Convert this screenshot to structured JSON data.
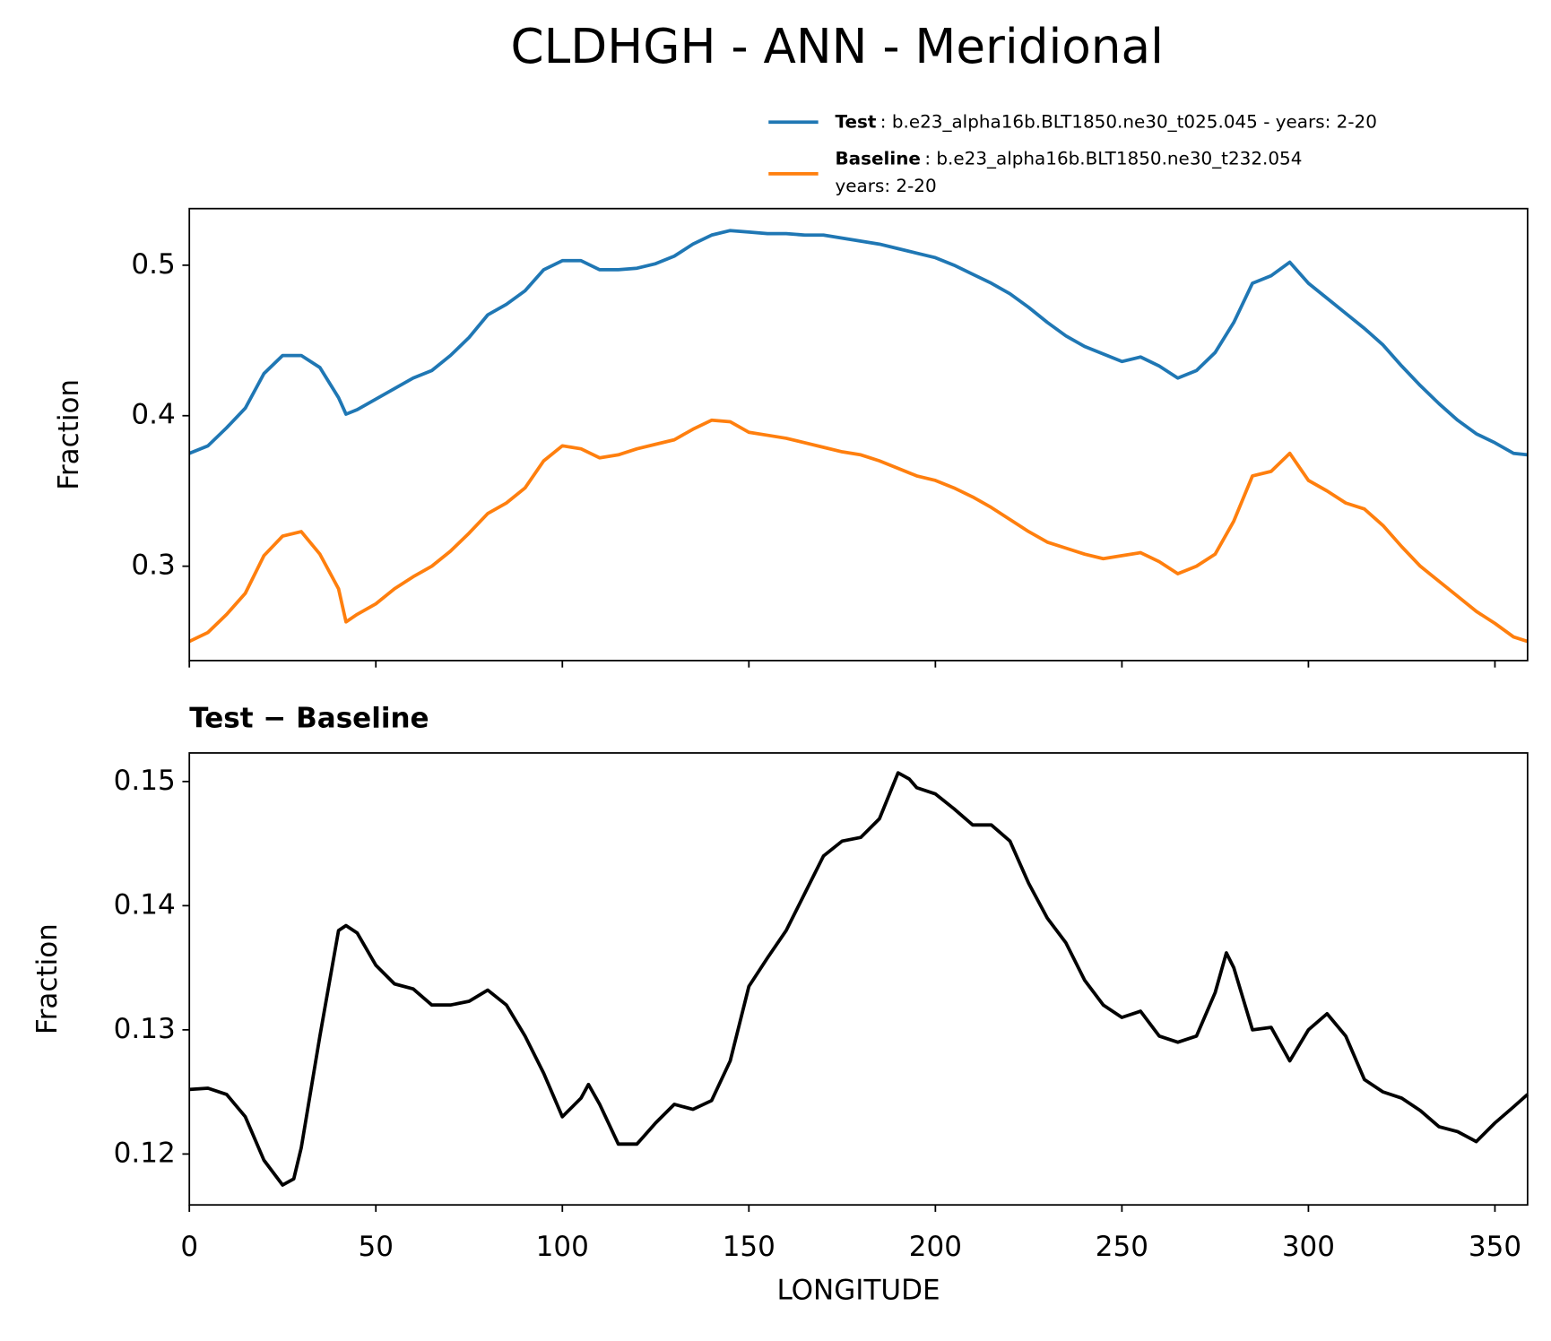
{
  "chart_data": [
    {
      "type": "line",
      "title": "CLDHGH - ANN - Meridional",
      "y_label": "Fraction",
      "xlim": [
        0,
        358.75
      ],
      "ylim": [
        0.2373,
        0.5376
      ],
      "xticks": [
        0,
        50,
        100,
        150,
        200,
        250,
        300,
        350
      ],
      "yticks": [
        0.3,
        0.4,
        0.5
      ],
      "x": [
        0,
        5,
        10,
        15,
        20,
        25,
        30,
        35,
        40,
        42,
        45,
        50,
        55,
        60,
        65,
        70,
        75,
        80,
        85,
        90,
        95,
        100,
        105,
        110,
        115,
        120,
        125,
        130,
        135,
        140,
        145,
        150,
        155,
        160,
        165,
        170,
        175,
        180,
        185,
        190,
        195,
        200,
        205,
        210,
        215,
        220,
        225,
        230,
        235,
        240,
        245,
        250,
        255,
        260,
        265,
        270,
        275,
        280,
        285,
        290,
        295,
        300,
        305,
        310,
        315,
        320,
        325,
        330,
        335,
        340,
        345,
        350,
        355,
        358.75
      ],
      "series": [
        {
          "name": "Test",
          "description": [
            ": b.e23_alpha16b.BLT1850.ne30_t025.045 - years: 2-20"
          ],
          "color": "#1f77b4",
          "values": [
            0.375,
            0.38,
            0.392,
            0.405,
            0.428,
            0.44,
            0.44,
            0.432,
            0.412,
            0.401,
            0.404,
            0.411,
            0.418,
            0.425,
            0.43,
            0.44,
            0.452,
            0.467,
            0.474,
            0.483,
            0.497,
            0.503,
            0.503,
            0.497,
            0.497,
            0.498,
            0.501,
            0.506,
            0.514,
            0.52,
            0.523,
            0.522,
            0.521,
            0.521,
            0.52,
            0.52,
            0.518,
            0.516,
            0.514,
            0.511,
            0.508,
            0.505,
            0.5,
            0.494,
            0.488,
            0.481,
            0.472,
            0.462,
            0.453,
            0.446,
            0.441,
            0.436,
            0.439,
            0.433,
            0.425,
            0.43,
            0.442,
            0.462,
            0.488,
            0.493,
            0.502,
            0.488,
            0.478,
            0.468,
            0.458,
            0.447,
            0.433,
            0.42,
            0.408,
            0.397,
            0.388,
            0.382,
            0.375,
            0.374
          ]
        },
        {
          "name": "Baseline",
          "description": [
            ": b.e23_alpha16b.BLT1850.ne30_t232.054",
            "years: 2-20"
          ],
          "color": "#ff7f0e",
          "values": [
            0.25,
            0.256,
            0.268,
            0.282,
            0.307,
            0.32,
            0.323,
            0.308,
            0.285,
            0.263,
            0.268,
            0.275,
            0.285,
            0.293,
            0.3,
            0.31,
            0.322,
            0.335,
            0.342,
            0.352,
            0.37,
            0.38,
            0.378,
            0.372,
            0.374,
            0.378,
            0.381,
            0.384,
            0.391,
            0.397,
            0.396,
            0.389,
            0.387,
            0.385,
            0.382,
            0.379,
            0.376,
            0.374,
            0.37,
            0.365,
            0.36,
            0.357,
            0.352,
            0.346,
            0.339,
            0.331,
            0.323,
            0.316,
            0.312,
            0.308,
            0.305,
            0.307,
            0.309,
            0.303,
            0.295,
            0.3,
            0.308,
            0.33,
            0.36,
            0.363,
            0.375,
            0.357,
            0.35,
            0.342,
            0.338,
            0.327,
            0.313,
            0.3,
            0.29,
            0.28,
            0.27,
            0.262,
            0.253,
            0.25
          ]
        }
      ]
    },
    {
      "type": "line",
      "title": "Test − Baseline",
      "x_label": "LONGITUDE",
      "y_label": "Fraction",
      "xlim": [
        0,
        358.75
      ],
      "ylim": [
        0.1159,
        0.1523
      ],
      "xticks": [
        0,
        50,
        100,
        150,
        200,
        250,
        300,
        350
      ],
      "yticks": [
        0.12,
        0.13,
        0.14,
        0.15
      ],
      "x": [
        0,
        5,
        10,
        15,
        20,
        25,
        28,
        30,
        35,
        40,
        42,
        45,
        50,
        55,
        60,
        65,
        70,
        75,
        80,
        85,
        90,
        95,
        100,
        105,
        107,
        110,
        115,
        120,
        125,
        130,
        135,
        140,
        145,
        150,
        155,
        160,
        165,
        170,
        175,
        180,
        185,
        190,
        193,
        195,
        200,
        205,
        210,
        215,
        220,
        225,
        230,
        235,
        240,
        245,
        250,
        255,
        260,
        265,
        270,
        275,
        278,
        280,
        285,
        290,
        295,
        300,
        305,
        310,
        315,
        320,
        325,
        330,
        335,
        340,
        345,
        350,
        355,
        358.75
      ],
      "series": [
        {
          "color": "#000000",
          "values": [
            0.1252,
            0.1253,
            0.1248,
            0.123,
            0.1195,
            0.1175,
            0.118,
            0.1205,
            0.1295,
            0.138,
            0.1384,
            0.1378,
            0.1352,
            0.1337,
            0.1333,
            0.132,
            0.132,
            0.1323,
            0.1332,
            0.132,
            0.1295,
            0.1265,
            0.123,
            0.1245,
            0.1256,
            0.124,
            0.1208,
            0.1208,
            0.1225,
            0.124,
            0.1236,
            0.1243,
            0.1275,
            0.1335,
            0.1358,
            0.138,
            0.141,
            0.144,
            0.1452,
            0.1455,
            0.147,
            0.1507,
            0.1502,
            0.1495,
            0.149,
            0.1478,
            0.1465,
            0.1465,
            0.1452,
            0.1418,
            0.139,
            0.137,
            0.134,
            0.132,
            0.131,
            0.1315,
            0.1295,
            0.129,
            0.1295,
            0.133,
            0.1362,
            0.135,
            0.13,
            0.1302,
            0.1275,
            0.13,
            0.1313,
            0.1295,
            0.126,
            0.125,
            0.1245,
            0.1235,
            0.1222,
            0.1218,
            0.121,
            0.1225,
            0.1238,
            0.1248
          ]
        }
      ]
    }
  ]
}
